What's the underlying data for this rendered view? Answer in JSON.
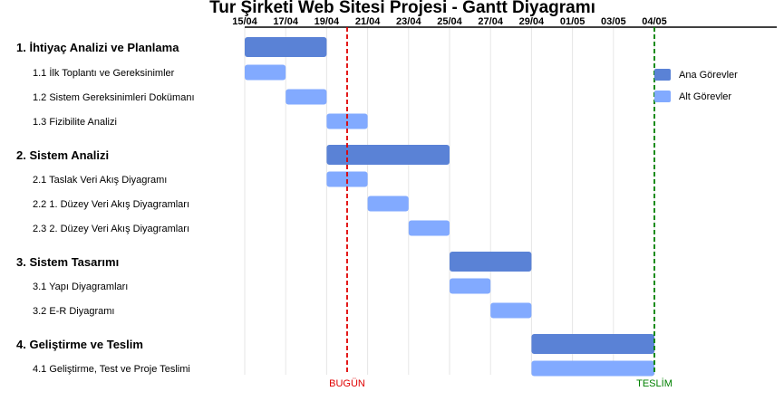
{
  "chart_data": {
    "type": "gantt",
    "title": "Tur Şirketi Web Sitesi Projesi - Gantt Diyagramı",
    "x_ticks": [
      "15/04",
      "17/04",
      "19/04",
      "21/04",
      "23/04",
      "25/04",
      "27/04",
      "29/04",
      "01/05",
      "03/05",
      "04/05"
    ],
    "x_range": [
      "2024-04-15",
      "2024-05-05"
    ],
    "tasks": [
      {
        "label": "1. İhtiyaç Analizi ve Planlama",
        "level": "main",
        "start": "2024-04-15",
        "end": "2024-04-19"
      },
      {
        "label": "1.1 İlk Toplantı ve Gereksinimler",
        "level": "sub",
        "start": "2024-04-15",
        "end": "2024-04-17"
      },
      {
        "label": "1.2 Sistem Gereksinimleri Dokümanı",
        "level": "sub",
        "start": "2024-04-17",
        "end": "2024-04-19"
      },
      {
        "label": "1.3 Fizibilite Analizi",
        "level": "sub",
        "start": "2024-04-19",
        "end": "2024-04-21"
      },
      {
        "label": "2. Sistem Analizi",
        "level": "main",
        "start": "2024-04-19",
        "end": "2024-04-25"
      },
      {
        "label": "2.1 Taslak Veri Akış Diyagramı",
        "level": "sub",
        "start": "2024-04-19",
        "end": "2024-04-21"
      },
      {
        "label": "2.2 1. Düzey Veri Akış Diyagramları",
        "level": "sub",
        "start": "2024-04-21",
        "end": "2024-04-23"
      },
      {
        "label": "2.3 2. Düzey Veri Akış Diyagramları",
        "level": "sub",
        "start": "2024-04-23",
        "end": "2024-04-25"
      },
      {
        "label": "3. Sistem Tasarımı",
        "level": "main",
        "start": "2024-04-25",
        "end": "2024-04-29"
      },
      {
        "label": "3.1 Yapı Diyagramları",
        "level": "sub",
        "start": "2024-04-25",
        "end": "2024-04-27"
      },
      {
        "label": "3.2 E-R Diyagramı",
        "level": "sub",
        "start": "2024-04-27",
        "end": "2024-04-29"
      },
      {
        "label": "4. Geliştirme ve Teslim",
        "level": "main",
        "start": "2024-04-29",
        "end": "2024-05-05"
      },
      {
        "label": "4.1 Geliştirme, Test ve Proje Teslimi",
        "level": "sub",
        "start": "2024-04-29",
        "end": "2024-05-05"
      }
    ],
    "markers": [
      {
        "label": "BUGÜN",
        "date": "2024-04-20",
        "color": "#e00000"
      },
      {
        "label": "TESLİM",
        "date": "2024-05-05",
        "color": "#008000"
      }
    ],
    "legend": {
      "placement": "top-right",
      "items": [
        {
          "label": "Ana Görevler",
          "color": "#5a82d6"
        },
        {
          "label": "Alt Görevler",
          "color": "#82aaff"
        }
      ]
    },
    "grid": true
  }
}
